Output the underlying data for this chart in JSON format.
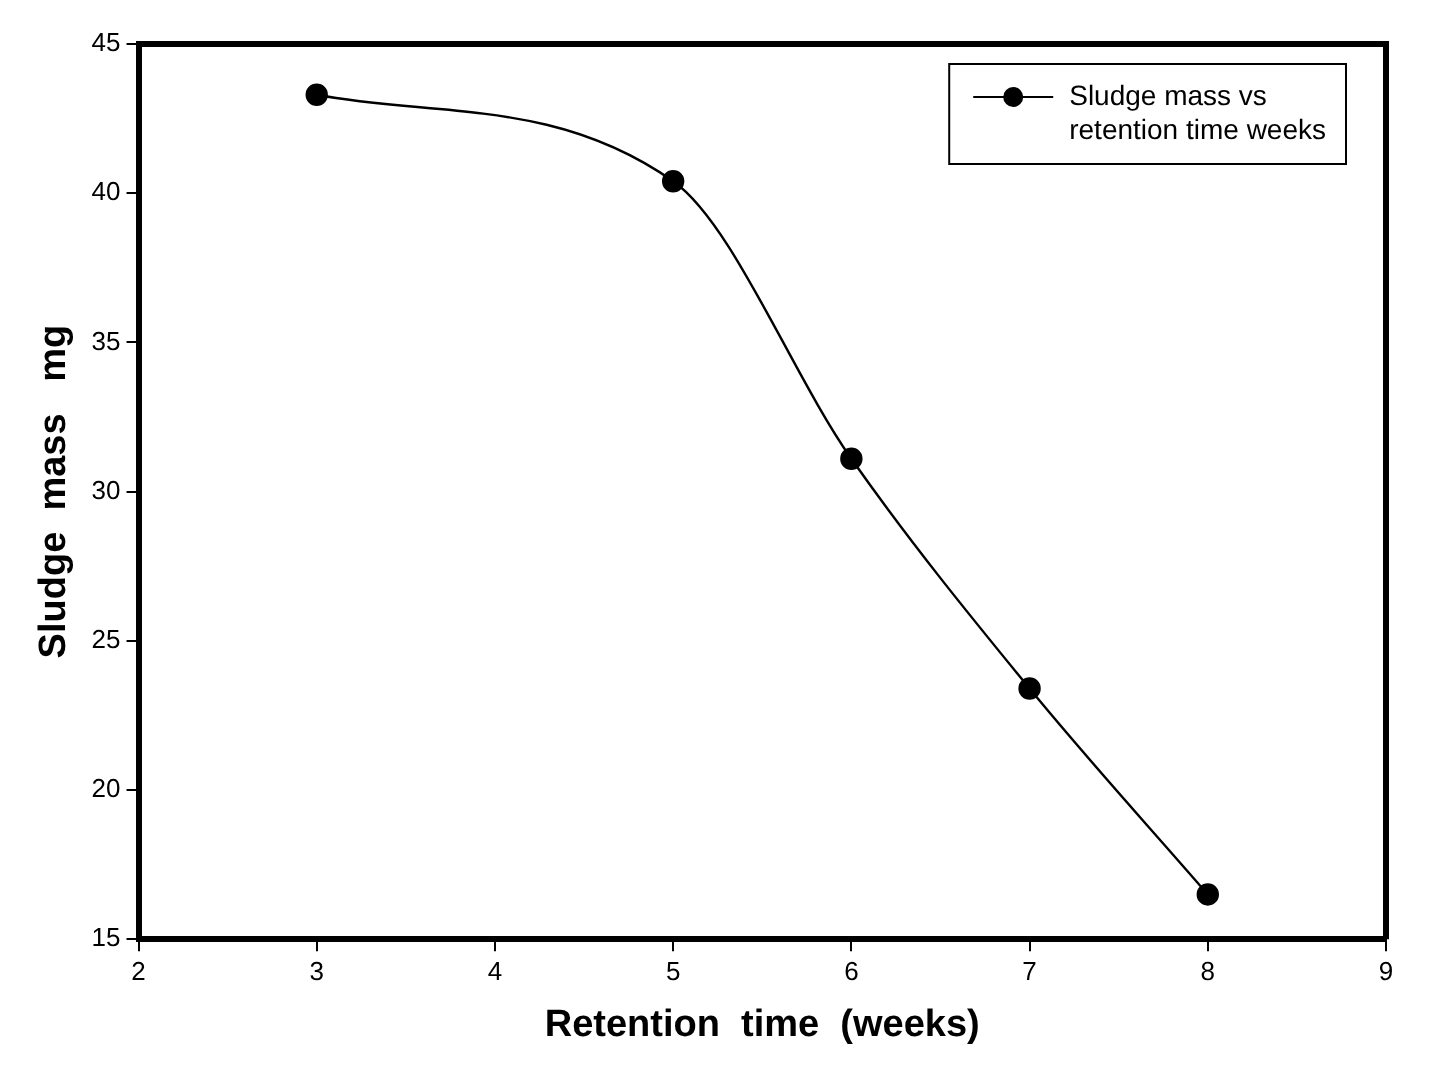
{
  "chart_data": {
    "type": "line",
    "xlabel": "Retention  time  (weeks)",
    "ylabel": "Sludge  mass   mg",
    "x": [
      3,
      5,
      6,
      7,
      8
    ],
    "series": [
      {
        "name": "Sludge mass vs retention time weeks",
        "color": "#000000",
        "values": [
          43.3,
          40.4,
          31.1,
          23.4,
          16.5
        ]
      }
    ],
    "xlim": [
      2,
      9
    ],
    "xticks": [
      2,
      3,
      4,
      5,
      6,
      7,
      8,
      9
    ],
    "ylim": [
      15,
      45
    ],
    "yticks": [
      15,
      20,
      25,
      30,
      35,
      40,
      45
    ],
    "legend": "top right",
    "marker": "circle",
    "line_style": "solid"
  }
}
